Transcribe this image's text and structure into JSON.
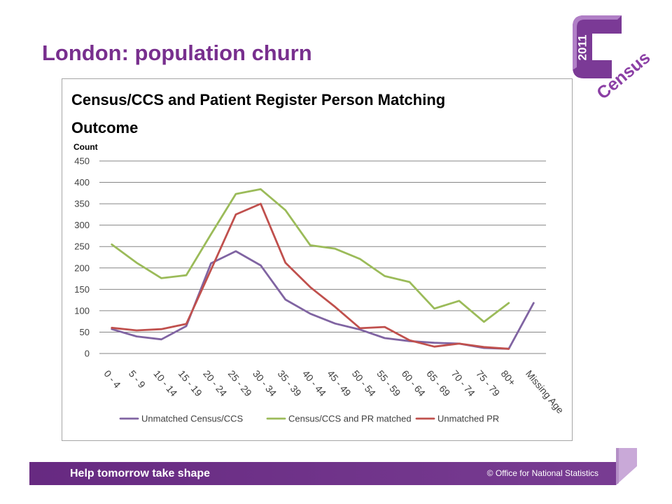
{
  "slide": {
    "title": "London: population churn"
  },
  "theme": {
    "title_color": "#782f8e",
    "banner_color": "#6d2c89",
    "logo_color": "#7b3a96"
  },
  "logo": {
    "year": "2011",
    "word": "Census"
  },
  "footer": {
    "tagline": "Help tomorrow take shape",
    "copyright": "© Office for National Statistics"
  },
  "chart_data": {
    "type": "line",
    "title": "Census/CCS and Patient Register Person Matching Outcome",
    "ylabel": "Count",
    "categories": [
      "0 - 4",
      "5 - 9",
      "10 - 14",
      "15 - 19",
      "20 - 24",
      "25 - 29",
      "30 - 34",
      "35 - 39",
      "40 - 44",
      "45 - 49",
      "50 - 54",
      "55 - 59",
      "60 - 64",
      "65 - 69",
      "70 - 74",
      "75 - 79",
      "80+",
      "Missing Age"
    ],
    "ylim": [
      0,
      450
    ],
    "yticks": [
      0,
      50,
      100,
      150,
      200,
      250,
      300,
      350,
      400,
      450
    ],
    "grid": true,
    "legend_position": "bottom",
    "series": [
      {
        "name": "Unmatched Census/CCS",
        "color": "#8064a2",
        "values": [
          57,
          40,
          33,
          64,
          211,
          239,
          206,
          126,
          93,
          70,
          56,
          36,
          29,
          25,
          23,
          13,
          11,
          118
        ]
      },
      {
        "name": "Census/CCS and PR matched",
        "color": "#9bbb59",
        "values": [
          255,
          212,
          176,
          183,
          279,
          373,
          384,
          335,
          253,
          245,
          221,
          181,
          167,
          105,
          123,
          74,
          118,
          null
        ]
      },
      {
        "name": "Unmatched PR",
        "color": "#c0504d",
        "values": [
          60,
          54,
          57,
          69,
          196,
          325,
          350,
          212,
          155,
          109,
          59,
          62,
          31,
          16,
          23,
          15,
          11,
          null
        ]
      }
    ]
  }
}
